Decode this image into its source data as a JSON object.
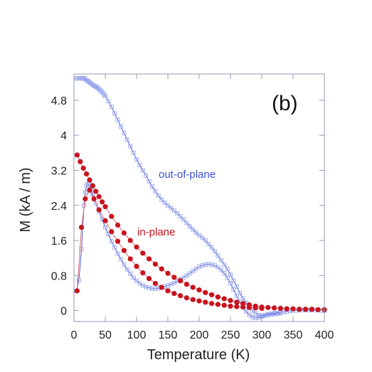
{
  "colors": {
    "out_of_plane": "#3b4fd6",
    "out_of_plane_marker": "#9aa6ee",
    "in_plane": "#c8141e",
    "in_plane_line": "#d85a6a",
    "axis": "#9a9ab5"
  },
  "chart_data": {
    "type": "scatter",
    "title": "",
    "panel_label": "(b)",
    "xlabel": "Temperature (K)",
    "ylabel": "M (kA / m)",
    "xlim": [
      0,
      400
    ],
    "ylim": [
      -0.25,
      5.4
    ],
    "xticks": [
      "0",
      "50",
      "100",
      "150",
      "200",
      "250",
      "300",
      "350",
      "400"
    ],
    "yticks": [
      "0",
      "0.8",
      "1.6",
      "2.4",
      "3.2",
      "4",
      "4.8"
    ],
    "grid": false,
    "legend": "none",
    "annotations": [
      {
        "text": "out-of-plane",
        "series": "out-of-plane"
      },
      {
        "text": "in-plane",
        "series": "in-plane"
      }
    ],
    "series": [
      {
        "name": "out-of-plane",
        "marker": "open-square",
        "x": [
          4,
          6,
          8,
          10,
          12,
          14,
          16,
          18,
          20,
          22,
          24,
          26,
          28,
          30,
          32,
          34,
          36,
          38,
          40,
          42,
          44,
          46,
          48,
          50,
          55,
          60,
          65,
          70,
          75,
          80,
          85,
          90,
          95,
          100,
          105,
          110,
          115,
          120,
          125,
          130,
          135,
          140,
          145,
          150,
          155,
          160,
          165,
          170,
          175,
          180,
          185,
          190,
          195,
          200,
          205,
          210,
          215,
          220,
          225,
          230,
          235,
          240,
          245,
          250,
          255,
          260,
          265,
          270,
          275,
          280,
          285,
          290,
          295,
          300,
          305,
          310,
          315,
          320,
          325,
          330,
          335,
          340,
          345,
          350,
          355,
          360,
          365,
          370,
          375,
          380,
          385,
          390,
          395,
          400
        ],
        "y": [
          5.3,
          5.3,
          5.3,
          5.3,
          5.3,
          5.31,
          5.3,
          5.28,
          5.26,
          5.24,
          5.22,
          5.2,
          5.17,
          5.15,
          5.13,
          5.12,
          5.1,
          5.08,
          5.06,
          5.03,
          5.0,
          4.97,
          4.93,
          4.9,
          4.78,
          4.65,
          4.5,
          4.35,
          4.2,
          4.05,
          3.9,
          3.75,
          3.6,
          3.45,
          3.32,
          3.2,
          3.08,
          2.95,
          2.83,
          2.72,
          2.62,
          2.53,
          2.46,
          2.4,
          2.34,
          2.28,
          2.22,
          2.15,
          2.08,
          2.0,
          1.92,
          1.85,
          1.78,
          1.72,
          1.66,
          1.6,
          1.52,
          1.44,
          1.35,
          1.25,
          1.15,
          1.05,
          0.95,
          0.82,
          0.68,
          0.55,
          0.4,
          0.28,
          0.18,
          0.08,
          0.0,
          -0.06,
          -0.1,
          -0.12,
          -0.1,
          -0.08,
          -0.07,
          -0.06,
          -0.05,
          -0.04,
          -0.03,
          -0.02,
          -0.01,
          0.0,
          0.0,
          0.01,
          0.01,
          0.01,
          0.01,
          0.01,
          0.01,
          0.01,
          0.0,
          0.0
        ]
      },
      {
        "name": "out-of-plane-lower",
        "marker": "open-square",
        "x": [
          4,
          8,
          12,
          16,
          18,
          20,
          22,
          24,
          26,
          28,
          30,
          35,
          40,
          45,
          50,
          55,
          60,
          65,
          70,
          75,
          80,
          85,
          90,
          95,
          100,
          105,
          110,
          115,
          120,
          125,
          130,
          135,
          140,
          145,
          150,
          155,
          160,
          165,
          170,
          175,
          180,
          185,
          190,
          195,
          200,
          205,
          210,
          215,
          220,
          225,
          230,
          235,
          240,
          245,
          250,
          255,
          260,
          265,
          270,
          275,
          280,
          285,
          290,
          295,
          300,
          305,
          310,
          315,
          320,
          325,
          330
        ],
        "y": [
          0.45,
          0.7,
          1.4,
          2.4,
          2.7,
          2.85,
          2.9,
          2.88,
          2.82,
          2.74,
          2.65,
          2.45,
          2.26,
          2.08,
          1.9,
          1.74,
          1.58,
          1.44,
          1.3,
          1.17,
          1.05,
          0.94,
          0.84,
          0.75,
          0.68,
          0.62,
          0.57,
          0.54,
          0.52,
          0.5,
          0.5,
          0.51,
          0.52,
          0.55,
          0.57,
          0.6,
          0.63,
          0.67,
          0.71,
          0.75,
          0.8,
          0.85,
          0.9,
          0.95,
          1.0,
          1.03,
          1.05,
          1.06,
          1.05,
          1.03,
          0.99,
          0.93,
          0.85,
          0.75,
          0.62,
          0.48,
          0.33,
          0.2,
          0.08,
          -0.02,
          -0.1,
          -0.15,
          -0.17,
          -0.16,
          -0.14,
          -0.12,
          -0.1,
          -0.09,
          -0.08,
          -0.07,
          -0.06
        ]
      },
      {
        "name": "in-plane",
        "marker": "filled-circle",
        "x": [
          5,
          10,
          15,
          20,
          25,
          30,
          35,
          40,
          45,
          50,
          60,
          70,
          80,
          90,
          100,
          110,
          120,
          130,
          140,
          150,
          160,
          170,
          180,
          190,
          200,
          210,
          220,
          230,
          240,
          250,
          260,
          270,
          280,
          290,
          300,
          310,
          320,
          330,
          340,
          350,
          360,
          370,
          380,
          390,
          400
        ],
        "y": [
          3.55,
          3.4,
          3.25,
          3.12,
          2.98,
          2.85,
          2.72,
          2.6,
          2.48,
          2.37,
          2.15,
          1.95,
          1.77,
          1.6,
          1.45,
          1.31,
          1.18,
          1.06,
          0.95,
          0.85,
          0.76,
          0.68,
          0.6,
          0.53,
          0.47,
          0.41,
          0.36,
          0.31,
          0.27,
          0.23,
          0.19,
          0.16,
          0.13,
          0.1,
          0.08,
          0.07,
          0.06,
          0.05,
          0.04,
          0.04,
          0.03,
          0.03,
          0.03,
          0.02,
          0.02
        ]
      },
      {
        "name": "in-plane-lower",
        "marker": "filled-circle",
        "x": [
          5,
          12,
          18,
          25,
          32,
          40,
          50,
          60,
          70,
          80,
          90,
          100,
          110,
          120,
          130,
          140,
          150,
          160,
          170,
          180,
          190,
          200,
          210,
          220,
          230,
          240,
          250,
          260,
          270,
          280,
          290,
          300
        ],
        "y": [
          0.45,
          1.9,
          2.55,
          2.75,
          2.55,
          2.3,
          2.05,
          1.8,
          1.58,
          1.37,
          1.18,
          1.01,
          0.86,
          0.73,
          0.62,
          0.53,
          0.45,
          0.39,
          0.34,
          0.29,
          0.25,
          0.22,
          0.19,
          0.16,
          0.14,
          0.12,
          0.1,
          0.09,
          0.08,
          0.07,
          0.06,
          0.05
        ]
      }
    ]
  }
}
